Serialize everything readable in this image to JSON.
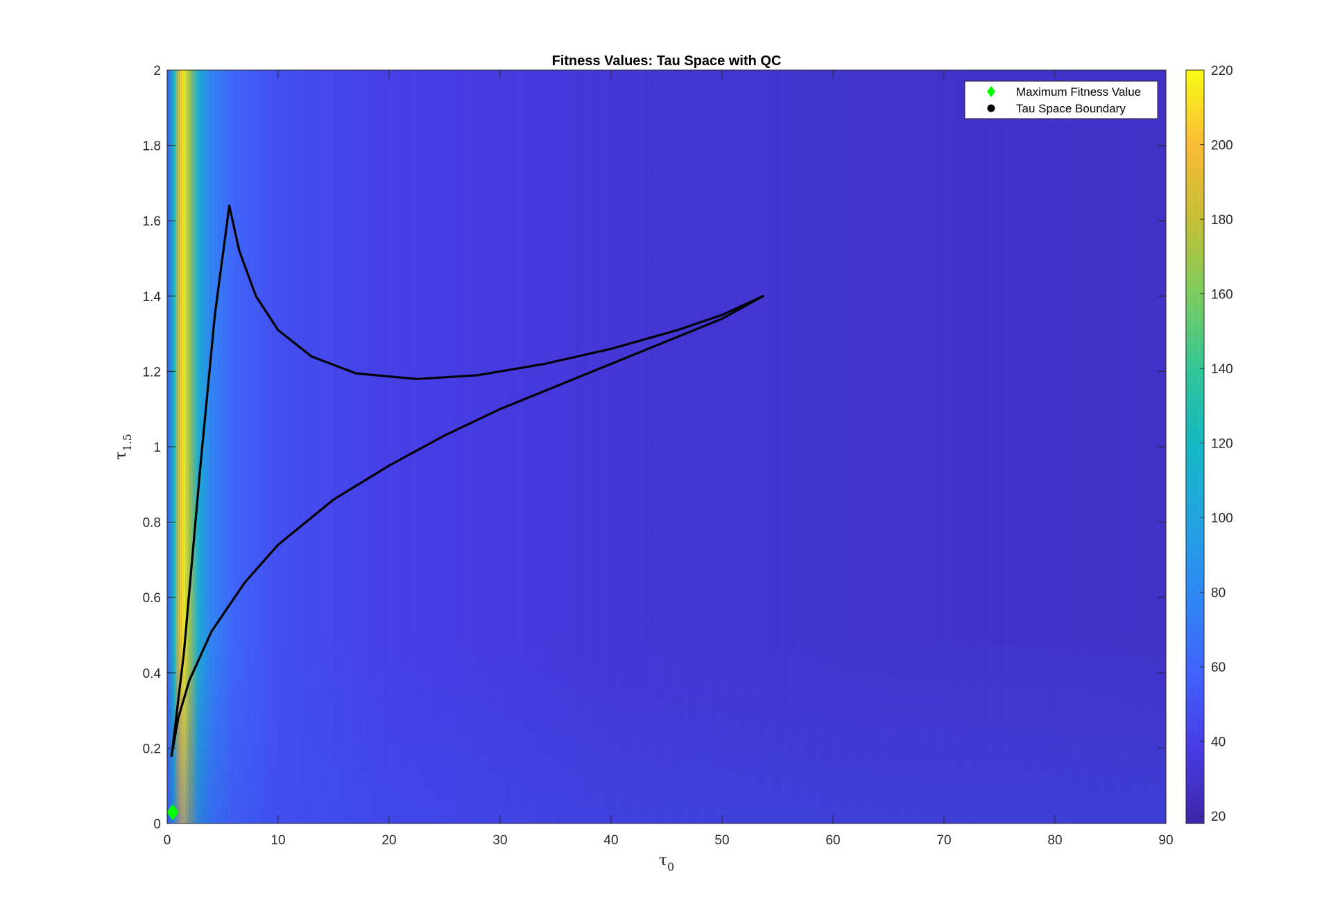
{
  "chart_data": {
    "type": "heatmap",
    "title": "Fitness Values: Tau Space with QC",
    "xlabel": {
      "main": "τ",
      "sub": "0"
    },
    "ylabel": {
      "main": "τ",
      "sub": "1.5"
    },
    "xlim": [
      0,
      90
    ],
    "ylim": [
      0,
      2
    ],
    "x_ticks": [
      "0",
      "10",
      "20",
      "30",
      "40",
      "50",
      "60",
      "70",
      "80",
      "90"
    ],
    "y_ticks": [
      "0",
      "0.2",
      "0.4",
      "0.6",
      "0.8",
      "1",
      "1.2",
      "1.4",
      "1.6",
      "1.8",
      "2"
    ],
    "colorbar": {
      "colormap": "parula",
      "limits": [
        18,
        220
      ],
      "ticks": [
        "20",
        "40",
        "60",
        "80",
        "100",
        "120",
        "140",
        "160",
        "180",
        "200",
        "220"
      ]
    },
    "heatmap_description_values": {
      "background_level": 28,
      "ridge_peak": 215,
      "ridge_x": 1.5
    },
    "series": [
      {
        "name": "Maximum Fitness Value",
        "marker": "diamond",
        "color": "#00ff00",
        "points": [
          {
            "x": 0.5,
            "y": 0.03
          }
        ]
      },
      {
        "name": "Tau Space Boundary",
        "marker": "circle",
        "color": "#000000",
        "segments": [
          [
            {
              "x": 0.4,
              "y": 0.18
            },
            {
              "x": 1.5,
              "y": 0.45
            },
            {
              "x": 3.0,
              "y": 0.95
            },
            {
              "x": 4.3,
              "y": 1.35
            },
            {
              "x": 5.6,
              "y": 1.64
            }
          ],
          [
            {
              "x": 5.6,
              "y": 1.64
            },
            {
              "x": 6.5,
              "y": 1.52
            },
            {
              "x": 8.0,
              "y": 1.4
            },
            {
              "x": 10.0,
              "y": 1.31
            },
            {
              "x": 13.0,
              "y": 1.24
            },
            {
              "x": 17.0,
              "y": 1.195
            },
            {
              "x": 22.5,
              "y": 1.18
            },
            {
              "x": 28.0,
              "y": 1.19
            },
            {
              "x": 34.0,
              "y": 1.22
            },
            {
              "x": 40.0,
              "y": 1.26
            },
            {
              "x": 46.0,
              "y": 1.31
            },
            {
              "x": 50.0,
              "y": 1.35
            },
            {
              "x": 53.7,
              "y": 1.4
            }
          ],
          [
            {
              "x": 0.4,
              "y": 0.18
            },
            {
              "x": 1.0,
              "y": 0.28
            },
            {
              "x": 2.0,
              "y": 0.38
            },
            {
              "x": 4.0,
              "y": 0.51
            },
            {
              "x": 7.0,
              "y": 0.64
            },
            {
              "x": 10.0,
              "y": 0.74
            },
            {
              "x": 15.0,
              "y": 0.86
            },
            {
              "x": 20.0,
              "y": 0.95
            },
            {
              "x": 25.0,
              "y": 1.03
            },
            {
              "x": 30.0,
              "y": 1.1
            },
            {
              "x": 35.0,
              "y": 1.16
            },
            {
              "x": 40.0,
              "y": 1.22
            },
            {
              "x": 45.0,
              "y": 1.28
            },
            {
              "x": 50.0,
              "y": 1.34
            },
            {
              "x": 53.7,
              "y": 1.4
            }
          ]
        ]
      }
    ],
    "legend": {
      "placement": "top-right",
      "entries": [
        "Maximum Fitness Value",
        "Tau Space Boundary"
      ]
    }
  }
}
